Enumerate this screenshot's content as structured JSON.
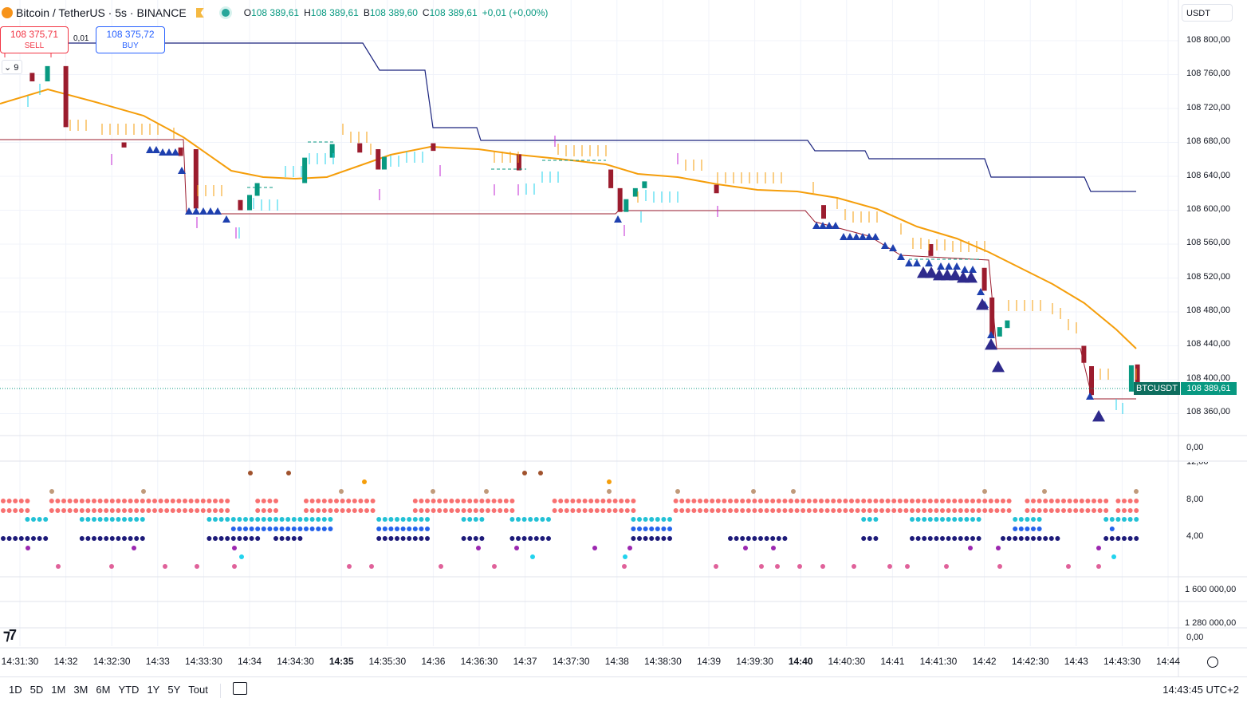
{
  "header": {
    "symbol": "Bitcoin / TetherUS · 5s · BINANCE",
    "o_label": "O",
    "o": "108 389,61",
    "h_label": "H",
    "h": "108 389,61",
    "b_label": "B",
    "b": "108 389,60",
    "c_label": "C",
    "c": "108 389,61",
    "change": "+0,01 (+0,00%)"
  },
  "trade": {
    "sell_price": "108 375,71",
    "sell_label": "SELL",
    "spread": "0,01",
    "buy_price": "108 375,72",
    "buy_label": "BUY"
  },
  "currency": "USDT",
  "collapse_count": "9",
  "price_axis": [
    "108 800,00",
    "108 760,00",
    "108 720,00",
    "108 680,00",
    "108 640,00",
    "108 600,00",
    "108 560,00",
    "108 520,00",
    "108 480,00",
    "108 440,00",
    "108 400,00",
    "108 360,00"
  ],
  "pane2_axis": [
    "0,00",
    "12,00",
    "8,00",
    "4,00"
  ],
  "pane3_axis": [
    "1 600 000,00",
    "1 280 000,00",
    "0,00"
  ],
  "time_axis": [
    {
      "t": "14:31:30",
      "b": false
    },
    {
      "t": "14:32",
      "b": false
    },
    {
      "t": "14:32:30",
      "b": false
    },
    {
      "t": "14:33",
      "b": false
    },
    {
      "t": "14:33:30",
      "b": false
    },
    {
      "t": "14:34",
      "b": false
    },
    {
      "t": "14:34:30",
      "b": false
    },
    {
      "t": "14:35",
      "b": true
    },
    {
      "t": "14:35:30",
      "b": false
    },
    {
      "t": "14:36",
      "b": false
    },
    {
      "t": "14:36:30",
      "b": false
    },
    {
      "t": "14:37",
      "b": false
    },
    {
      "t": "14:37:30",
      "b": false
    },
    {
      "t": "14:38",
      "b": false
    },
    {
      "t": "14:38:30",
      "b": false
    },
    {
      "t": "14:39",
      "b": false
    },
    {
      "t": "14:39:30",
      "b": false
    },
    {
      "t": "14:40",
      "b": true
    },
    {
      "t": "14:40:30",
      "b": false
    },
    {
      "t": "14:41",
      "b": false
    },
    {
      "t": "14:41:30",
      "b": false
    },
    {
      "t": "14:42",
      "b": false
    },
    {
      "t": "14:42:30",
      "b": false
    },
    {
      "t": "14:43",
      "b": false
    },
    {
      "t": "14:43:30",
      "b": false
    },
    {
      "t": "14:44",
      "b": false
    }
  ],
  "last_price": {
    "symbol": "BTCUSDT",
    "value": "108 389,61"
  },
  "ranges": [
    "1D",
    "5D",
    "1M",
    "3M",
    "6M",
    "YTD",
    "1Y",
    "5Y",
    "Tout"
  ],
  "clock": "14:43:45 UTC+2",
  "colors": {
    "up": "#089981",
    "down": "#9b1c2e",
    "ema": "#f59e0b",
    "donchian_top": "#1a237e",
    "support": "#9b1c2e",
    "triangle": "#1e40af",
    "triangle_big": "#2e2a8c"
  },
  "chart_data": {
    "type": "candlestick",
    "symbol": "BTCUSDT",
    "interval": "5s",
    "ylim": [
      108340,
      108830
    ],
    "x_range": [
      "14:31:30",
      "14:44"
    ],
    "candles_approx": [
      {
        "t": "14:31:38",
        "o": 108762,
        "c": 108752
      },
      {
        "t": "14:31:48",
        "o": 108752,
        "c": 108770
      },
      {
        "t": "14:32:00",
        "o": 108770,
        "c": 108698
      },
      {
        "t": "14:32:38",
        "o": 108680,
        "c": 108674
      },
      {
        "t": "14:33:15",
        "o": 108674,
        "c": 108664
      },
      {
        "t": "14:33:25",
        "o": 108672,
        "c": 108602
      },
      {
        "t": "14:33:54",
        "o": 108612,
        "c": 108600
      },
      {
        "t": "14:34:00",
        "o": 108600,
        "c": 108618
      },
      {
        "t": "14:34:05",
        "o": 108617,
        "c": 108632
      },
      {
        "t": "14:34:36",
        "o": 108632,
        "c": 108662
      },
      {
        "t": "14:34:54",
        "o": 108662,
        "c": 108678
      },
      {
        "t": "14:35:12",
        "o": 108679,
        "c": 108668
      },
      {
        "t": "14:35:24",
        "o": 108672,
        "c": 108648
      },
      {
        "t": "14:35:28",
        "o": 108648,
        "c": 108663
      },
      {
        "t": "14:36:00",
        "o": 108679,
        "c": 108670
      },
      {
        "t": "14:36:56",
        "o": 108666,
        "c": 108647
      },
      {
        "t": "14:37:56",
        "o": 108648,
        "c": 108626
      },
      {
        "t": "14:38:02",
        "o": 108626,
        "c": 108598
      },
      {
        "t": "14:38:06",
        "o": 108598,
        "c": 108613
      },
      {
        "t": "14:38:12",
        "o": 108616,
        "c": 108626
      },
      {
        "t": "14:38:18",
        "o": 108626,
        "c": 108634
      },
      {
        "t": "14:39:05",
        "o": 108630,
        "c": 108620
      },
      {
        "t": "14:40:15",
        "o": 108606,
        "c": 108590
      },
      {
        "t": "14:41:25",
        "o": 108560,
        "c": 108546
      },
      {
        "t": "14:42:00",
        "o": 108532,
        "c": 108505
      },
      {
        "t": "14:42:05",
        "o": 108497,
        "c": 108450
      },
      {
        "t": "14:42:10",
        "o": 108451,
        "c": 108462
      },
      {
        "t": "14:42:15",
        "o": 108461,
        "c": 108470
      },
      {
        "t": "14:43:05",
        "o": 108440,
        "c": 108420
      },
      {
        "t": "14:43:10",
        "o": 108416,
        "c": 108382
      },
      {
        "t": "14:43:36",
        "o": 108386,
        "c": 108417
      },
      {
        "t": "14:43:40",
        "o": 108418,
        "c": 108389
      }
    ],
    "last": 108389.61
  }
}
